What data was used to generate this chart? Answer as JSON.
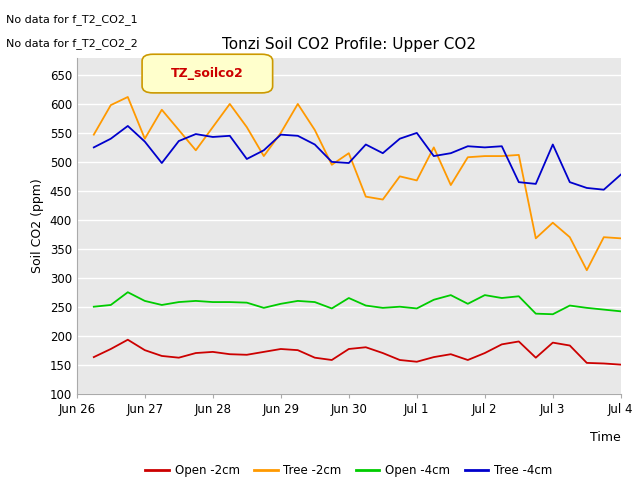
{
  "title": "Tonzi Soil CO2 Profile: Upper CO2",
  "ylabel": "Soil CO2 (ppm)",
  "xlabel": "Time",
  "ylim": [
    100,
    680
  ],
  "yticks": [
    100,
    150,
    200,
    250,
    300,
    350,
    400,
    450,
    500,
    550,
    600,
    650
  ],
  "no_data_text": [
    "No data for f_T2_CO2_1",
    "No data for f_T2_CO2_2"
  ],
  "legend_label": "TZ_soilco2",
  "legend_entries": [
    "Open -2cm",
    "Tree -2cm",
    "Open -4cm",
    "Tree -4cm"
  ],
  "legend_colors": [
    "#cc0000",
    "#ff9900",
    "#00cc00",
    "#0000cc"
  ],
  "bg_color": "#e8e8e8",
  "grid_color": "#ffffff",
  "open_2cm": {
    "color": "#cc0000",
    "x": [
      0.25,
      0.5,
      0.75,
      1.0,
      1.25,
      1.5,
      1.75,
      2.0,
      2.25,
      2.5,
      2.75,
      3.0,
      3.25,
      3.5,
      3.75,
      4.0,
      4.25,
      4.5,
      4.75,
      5.0,
      5.25,
      5.5,
      5.75,
      6.0,
      6.25,
      6.5,
      6.75,
      7.0,
      7.25,
      7.5,
      7.75,
      8.0
    ],
    "y": [
      163,
      177,
      193,
      175,
      165,
      162,
      170,
      172,
      168,
      167,
      172,
      177,
      175,
      162,
      158,
      177,
      180,
      170,
      158,
      155,
      163,
      168,
      158,
      170,
      185,
      190,
      162,
      188,
      183,
      153,
      152,
      150
    ]
  },
  "tree_2cm": {
    "color": "#ff9900",
    "x": [
      0.25,
      0.5,
      0.75,
      1.0,
      1.25,
      1.5,
      1.75,
      2.0,
      2.25,
      2.5,
      2.75,
      3.0,
      3.25,
      3.5,
      3.75,
      4.0,
      4.25,
      4.5,
      4.75,
      5.0,
      5.25,
      5.5,
      5.75,
      6.0,
      6.25,
      6.5,
      6.75,
      7.0,
      7.25,
      7.5,
      7.75,
      8.0
    ],
    "y": [
      547,
      598,
      612,
      540,
      590,
      555,
      520,
      560,
      600,
      560,
      510,
      550,
      600,
      555,
      495,
      515,
      440,
      435,
      475,
      468,
      525,
      460,
      508,
      510,
      510,
      512,
      368,
      395,
      370,
      313,
      370,
      368
    ]
  },
  "open_4cm": {
    "color": "#00cc00",
    "x": [
      0.25,
      0.5,
      0.75,
      1.0,
      1.25,
      1.5,
      1.75,
      2.0,
      2.25,
      2.5,
      2.75,
      3.0,
      3.25,
      3.5,
      3.75,
      4.0,
      4.25,
      4.5,
      4.75,
      5.0,
      5.25,
      5.5,
      5.75,
      6.0,
      6.25,
      6.5,
      6.75,
      7.0,
      7.25,
      7.5,
      7.75,
      8.0
    ],
    "y": [
      250,
      253,
      275,
      260,
      253,
      258,
      260,
      258,
      258,
      257,
      248,
      255,
      260,
      258,
      247,
      265,
      252,
      248,
      250,
      247,
      262,
      270,
      255,
      270,
      265,
      268,
      238,
      237,
      252,
      248,
      245,
      242
    ]
  },
  "tree_4cm": {
    "color": "#0000cc",
    "x": [
      0.25,
      0.5,
      0.75,
      1.0,
      1.25,
      1.5,
      1.75,
      2.0,
      2.25,
      2.5,
      2.75,
      3.0,
      3.25,
      3.5,
      3.75,
      4.0,
      4.25,
      4.5,
      4.75,
      5.0,
      5.25,
      5.5,
      5.75,
      6.0,
      6.25,
      6.5,
      6.75,
      7.0,
      7.25,
      7.5,
      7.75,
      8.0
    ],
    "y": [
      525,
      540,
      562,
      535,
      498,
      536,
      548,
      543,
      545,
      505,
      520,
      547,
      545,
      530,
      500,
      498,
      530,
      515,
      540,
      550,
      510,
      515,
      527,
      525,
      527,
      465,
      462,
      530,
      465,
      455,
      452,
      478
    ]
  }
}
